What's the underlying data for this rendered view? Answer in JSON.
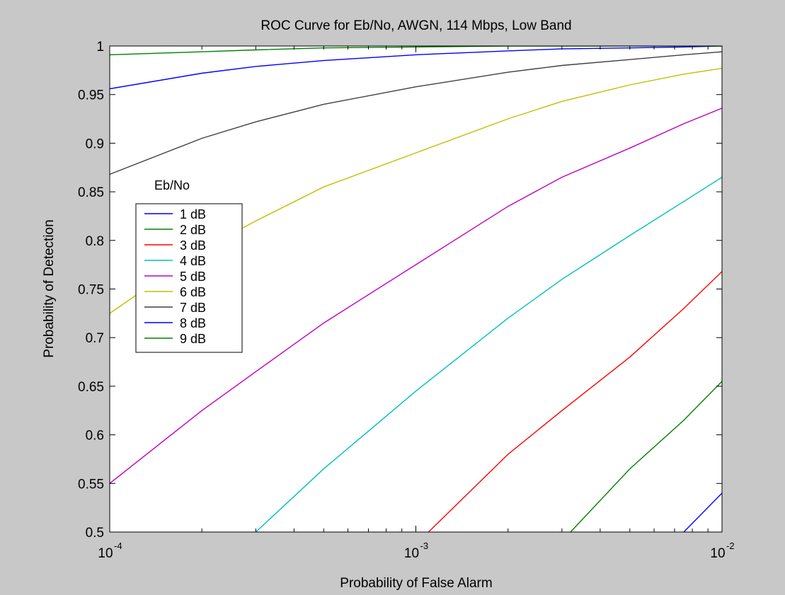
{
  "chart_data": {
    "type": "line",
    "title": "ROC Curve for Eb/No, AWGN, 114 Mbps, Low Band",
    "xlabel": "Probability of False Alarm",
    "ylabel": "Probability of Detection",
    "x_scale": "log",
    "xlim": [
      0.0001,
      0.01
    ],
    "ylim": [
      0.5,
      1
    ],
    "x_ticks": [
      {
        "value": 0.0001,
        "base": "10",
        "exp": "-4"
      },
      {
        "value": 0.001,
        "base": "10",
        "exp": "-3"
      },
      {
        "value": 0.01,
        "base": "10",
        "exp": "-2"
      }
    ],
    "y_ticks": [
      "0.5",
      "0.55",
      "0.6",
      "0.65",
      "0.7",
      "0.75",
      "0.8",
      "0.85",
      "0.9",
      "0.95",
      "1"
    ],
    "grid": false,
    "legend": {
      "title": "Eb/No",
      "position": "left"
    },
    "series": [
      {
        "name": "1 dB",
        "color": "#0000ff",
        "x": [
          0.0075,
          0.01
        ],
        "y": [
          0.5,
          0.54
        ]
      },
      {
        "name": "2 dB",
        "color": "#008000",
        "x": [
          0.0032,
          0.005,
          0.0075,
          0.01
        ],
        "y": [
          0.5,
          0.565,
          0.615,
          0.655
        ]
      },
      {
        "name": "3 dB",
        "color": "#ff0000",
        "x": [
          0.0011,
          0.002,
          0.003,
          0.005,
          0.0075,
          0.01
        ],
        "y": [
          0.5,
          0.58,
          0.625,
          0.68,
          0.73,
          0.768
        ]
      },
      {
        "name": "4 dB",
        "color": "#00bfbf",
        "x": [
          0.0003,
          0.0005,
          0.001,
          0.002,
          0.003,
          0.005,
          0.0075,
          0.01
        ],
        "y": [
          0.5,
          0.565,
          0.645,
          0.72,
          0.76,
          0.805,
          0.84,
          0.865
        ]
      },
      {
        "name": "5 dB",
        "color": "#bf00bf",
        "x": [
          0.0001,
          0.0002,
          0.0003,
          0.0005,
          0.001,
          0.002,
          0.003,
          0.005,
          0.0075,
          0.01
        ],
        "y": [
          0.55,
          0.625,
          0.665,
          0.715,
          0.775,
          0.835,
          0.865,
          0.895,
          0.92,
          0.936
        ]
      },
      {
        "name": "6 dB",
        "color": "#bfbf00",
        "x": [
          0.0001,
          0.0002,
          0.0003,
          0.0005,
          0.001,
          0.002,
          0.003,
          0.005,
          0.0075,
          0.01
        ],
        "y": [
          0.725,
          0.79,
          0.82,
          0.855,
          0.89,
          0.925,
          0.943,
          0.96,
          0.971,
          0.977
        ]
      },
      {
        "name": "7 dB",
        "color": "#404040",
        "x": [
          0.0001,
          0.0002,
          0.0003,
          0.0005,
          0.001,
          0.002,
          0.003,
          0.005,
          0.0075,
          0.01
        ],
        "y": [
          0.868,
          0.905,
          0.922,
          0.94,
          0.958,
          0.973,
          0.98,
          0.986,
          0.991,
          0.994
        ]
      },
      {
        "name": "8 dB",
        "color": "#0000ff",
        "x": [
          0.0001,
          0.0002,
          0.0003,
          0.0005,
          0.001,
          0.002,
          0.003,
          0.005,
          0.0075,
          0.01
        ],
        "y": [
          0.956,
          0.972,
          0.979,
          0.985,
          0.991,
          0.995,
          0.997,
          0.998,
          0.999,
          1.0
        ]
      },
      {
        "name": "9 dB",
        "color": "#008000",
        "x": [
          0.0001,
          0.0002,
          0.0003,
          0.0005,
          0.001,
          0.002,
          0.003,
          0.005,
          0.0075,
          0.01
        ],
        "y": [
          0.991,
          0.994,
          0.996,
          0.998,
          0.999,
          1.0,
          1.0,
          1.0,
          1.0,
          1.0
        ]
      }
    ]
  }
}
